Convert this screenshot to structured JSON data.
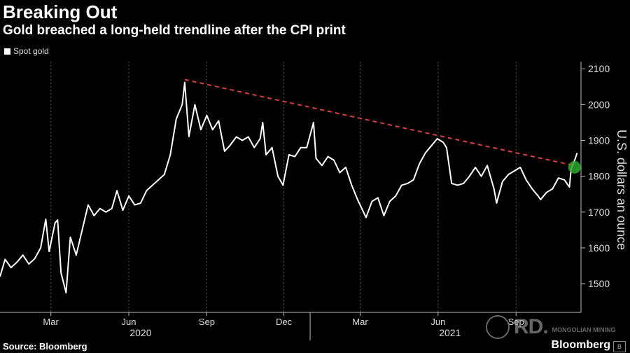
{
  "header": {
    "title": "Breaking Out",
    "subtitle": "Gold breached a long-held trendline after the CPI print"
  },
  "legend": {
    "label": "Spot gold"
  },
  "footer": {
    "source": "Source: Bloomberg",
    "brand": "Bloomberg"
  },
  "watermark": {
    "text": "MONGOLIAN MINING",
    "mark": "RD."
  },
  "colors": {
    "line": "#ffffff",
    "trendline": "#e03c3c",
    "highlight": "#2ea82e",
    "grid": "#555555",
    "background": "#000000"
  },
  "chart_data": {
    "type": "line",
    "ylabel": "U.S. dollars an ounce",
    "ylim": [
      1420,
      2120
    ],
    "yticks": [
      1500,
      1600,
      1700,
      1800,
      1900,
      2000,
      2100
    ],
    "xlim": [
      "2020-01-01",
      "2021-11-15"
    ],
    "xticks": [
      {
        "date": "2020-03-01",
        "label": "Mar"
      },
      {
        "date": "2020-06-01",
        "label": "Jun"
      },
      {
        "date": "2020-09-01",
        "label": "Sep"
      },
      {
        "date": "2020-12-01",
        "label": "Dec"
      },
      {
        "date": "2021-03-01",
        "label": "Mar"
      },
      {
        "date": "2021-06-01",
        "label": "Jun"
      },
      {
        "date": "2021-09-01",
        "label": "Sep"
      }
    ],
    "year_labels": [
      {
        "date": "2020-06-15",
        "label": "2020"
      },
      {
        "date": "2021-06-15",
        "label": "2021"
      }
    ],
    "year_separator": "2021-01-01",
    "grid": "vertical dashed",
    "series": [
      {
        "name": "Spot gold",
        "points": [
          [
            "2020-01-01",
            1520
          ],
          [
            "2020-01-07",
            1568
          ],
          [
            "2020-01-14",
            1545
          ],
          [
            "2020-01-21",
            1560
          ],
          [
            "2020-01-28",
            1580
          ],
          [
            "2020-02-04",
            1555
          ],
          [
            "2020-02-11",
            1570
          ],
          [
            "2020-02-18",
            1600
          ],
          [
            "2020-02-24",
            1680
          ],
          [
            "2020-02-28",
            1590
          ],
          [
            "2020-03-06",
            1670
          ],
          [
            "2020-03-09",
            1678
          ],
          [
            "2020-03-13",
            1530
          ],
          [
            "2020-03-19",
            1475
          ],
          [
            "2020-03-24",
            1630
          ],
          [
            "2020-03-31",
            1580
          ],
          [
            "2020-04-07",
            1650
          ],
          [
            "2020-04-14",
            1720
          ],
          [
            "2020-04-21",
            1690
          ],
          [
            "2020-04-28",
            1710
          ],
          [
            "2020-05-05",
            1700
          ],
          [
            "2020-05-12",
            1710
          ],
          [
            "2020-05-18",
            1760
          ],
          [
            "2020-05-25",
            1705
          ],
          [
            "2020-06-01",
            1745
          ],
          [
            "2020-06-08",
            1720
          ],
          [
            "2020-06-15",
            1725
          ],
          [
            "2020-06-22",
            1760
          ],
          [
            "2020-06-29",
            1775
          ],
          [
            "2020-07-06",
            1790
          ],
          [
            "2020-07-13",
            1805
          ],
          [
            "2020-07-20",
            1860
          ],
          [
            "2020-07-27",
            1960
          ],
          [
            "2020-08-03",
            2000
          ],
          [
            "2020-08-06",
            2062
          ],
          [
            "2020-08-11",
            1911
          ],
          [
            "2020-08-18",
            2000
          ],
          [
            "2020-08-25",
            1930
          ],
          [
            "2020-09-01",
            1970
          ],
          [
            "2020-09-08",
            1930
          ],
          [
            "2020-09-15",
            1955
          ],
          [
            "2020-09-22",
            1870
          ],
          [
            "2020-09-28",
            1885
          ],
          [
            "2020-10-06",
            1910
          ],
          [
            "2020-10-13",
            1900
          ],
          [
            "2020-10-20",
            1910
          ],
          [
            "2020-10-27",
            1880
          ],
          [
            "2020-11-03",
            1905
          ],
          [
            "2020-11-06",
            1950
          ],
          [
            "2020-11-10",
            1860
          ],
          [
            "2020-11-17",
            1880
          ],
          [
            "2020-11-24",
            1800
          ],
          [
            "2020-11-30",
            1775
          ],
          [
            "2020-12-07",
            1860
          ],
          [
            "2020-12-14",
            1855
          ],
          [
            "2020-12-21",
            1880
          ],
          [
            "2020-12-28",
            1880
          ],
          [
            "2021-01-05",
            1950
          ],
          [
            "2021-01-08",
            1850
          ],
          [
            "2021-01-15",
            1830
          ],
          [
            "2021-01-22",
            1855
          ],
          [
            "2021-01-29",
            1845
          ],
          [
            "2021-02-05",
            1810
          ],
          [
            "2021-02-12",
            1825
          ],
          [
            "2021-02-19",
            1775
          ],
          [
            "2021-02-26",
            1735
          ],
          [
            "2021-03-05",
            1700
          ],
          [
            "2021-03-08",
            1685
          ],
          [
            "2021-03-15",
            1730
          ],
          [
            "2021-03-22",
            1740
          ],
          [
            "2021-03-29",
            1690
          ],
          [
            "2021-04-05",
            1730
          ],
          [
            "2021-04-12",
            1745
          ],
          [
            "2021-04-19",
            1775
          ],
          [
            "2021-04-26",
            1780
          ],
          [
            "2021-05-03",
            1790
          ],
          [
            "2021-05-10",
            1835
          ],
          [
            "2021-05-17",
            1865
          ],
          [
            "2021-05-24",
            1885
          ],
          [
            "2021-05-31",
            1905
          ],
          [
            "2021-06-07",
            1895
          ],
          [
            "2021-06-11",
            1880
          ],
          [
            "2021-06-17",
            1780
          ],
          [
            "2021-06-24",
            1775
          ],
          [
            "2021-07-01",
            1780
          ],
          [
            "2021-07-08",
            1800
          ],
          [
            "2021-07-15",
            1825
          ],
          [
            "2021-07-22",
            1800
          ],
          [
            "2021-07-29",
            1830
          ],
          [
            "2021-08-06",
            1765
          ],
          [
            "2021-08-09",
            1725
          ],
          [
            "2021-08-16",
            1785
          ],
          [
            "2021-08-23",
            1805
          ],
          [
            "2021-08-30",
            1815
          ],
          [
            "2021-09-06",
            1825
          ],
          [
            "2021-09-13",
            1790
          ],
          [
            "2021-09-20",
            1765
          ],
          [
            "2021-09-27",
            1745
          ],
          [
            "2021-09-30",
            1735
          ],
          [
            "2021-10-07",
            1755
          ],
          [
            "2021-10-14",
            1765
          ],
          [
            "2021-10-21",
            1795
          ],
          [
            "2021-10-28",
            1790
          ],
          [
            "2021-11-03",
            1770
          ],
          [
            "2021-11-05",
            1820
          ],
          [
            "2021-11-10",
            1850
          ],
          [
            "2021-11-12",
            1865
          ]
        ]
      }
    ],
    "trendline": {
      "from": [
        "2020-08-06",
        2070
      ],
      "to": [
        "2021-11-08",
        1830
      ]
    },
    "highlight": {
      "date": "2021-11-09",
      "value": 1825
    }
  }
}
